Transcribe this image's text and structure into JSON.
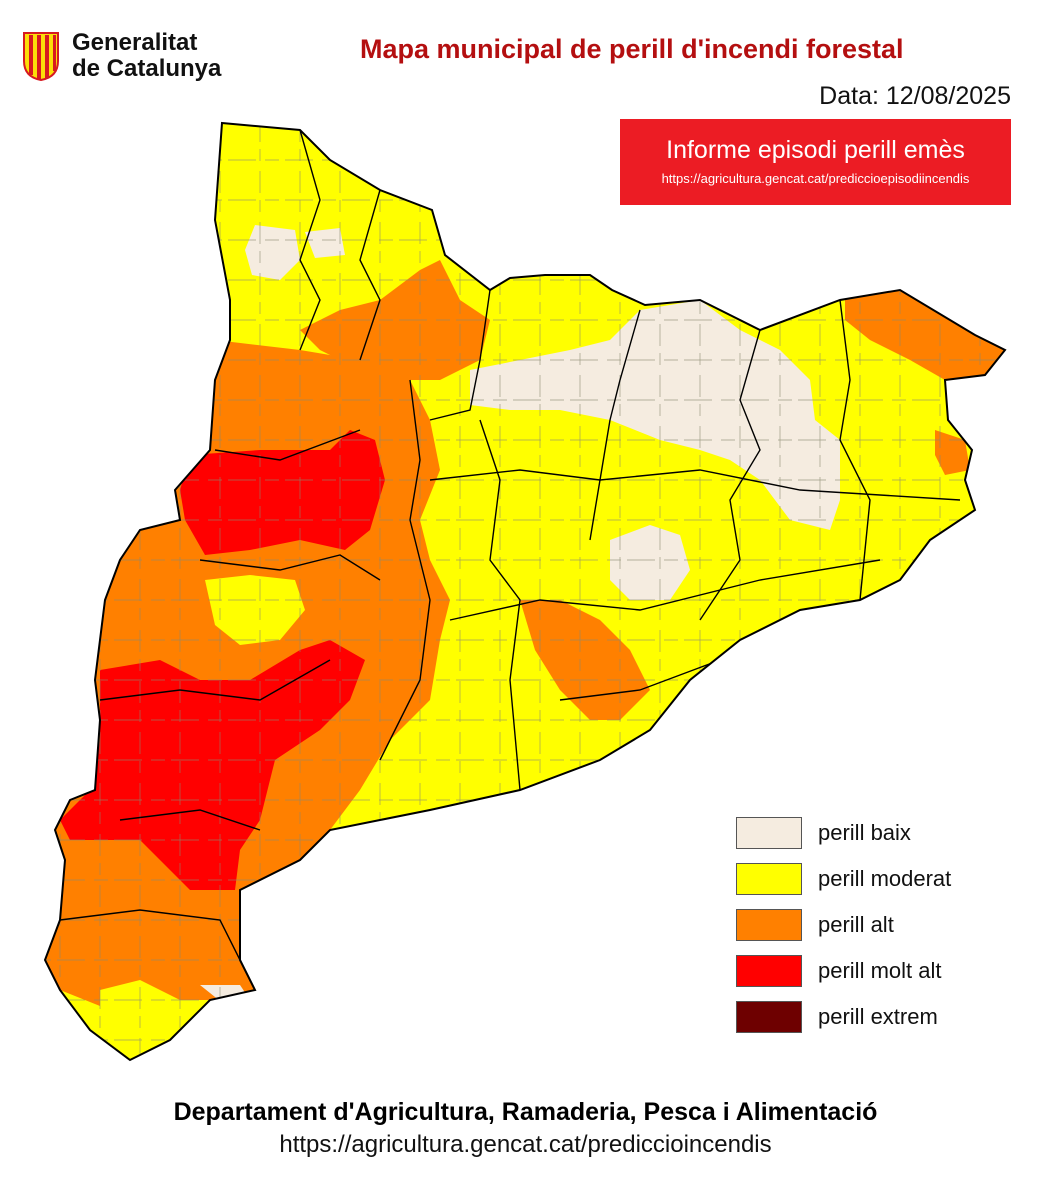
{
  "header": {
    "logo_line1": "Generalitat",
    "logo_line2": "de Catalunya",
    "title": "Mapa municipal de perill d'incendi forestal",
    "date": "Data: 12/08/2025"
  },
  "episode_notice": {
    "title": "Informe episodi perill emès",
    "link": "https://agricultura.gencat.cat/prediccioepisodiincendis"
  },
  "legend": {
    "items": [
      {
        "label": "perill baix",
        "color": "#f5ece0"
      },
      {
        "label": "perill moderat",
        "color": "#ffff00"
      },
      {
        "label": "perill alt",
        "color": "#ff8000"
      },
      {
        "label": "perill molt alt",
        "color": "#ff0000"
      },
      {
        "label": "perill extrem",
        "color": "#6e0000"
      }
    ]
  },
  "footer": {
    "department": "Departament d'Agricultura, Ramaderia, Pesca i Alimentació",
    "link": "https://agricultura.gencat.cat/prediccioincendis"
  },
  "colors": {
    "title_red": "#b40f10",
    "notice_red": "#ec1c24",
    "logo_red": "#d71920",
    "logo_yellow": "#fcdd09"
  },
  "icons": {
    "logo": "generalitat-senyera-icon"
  }
}
